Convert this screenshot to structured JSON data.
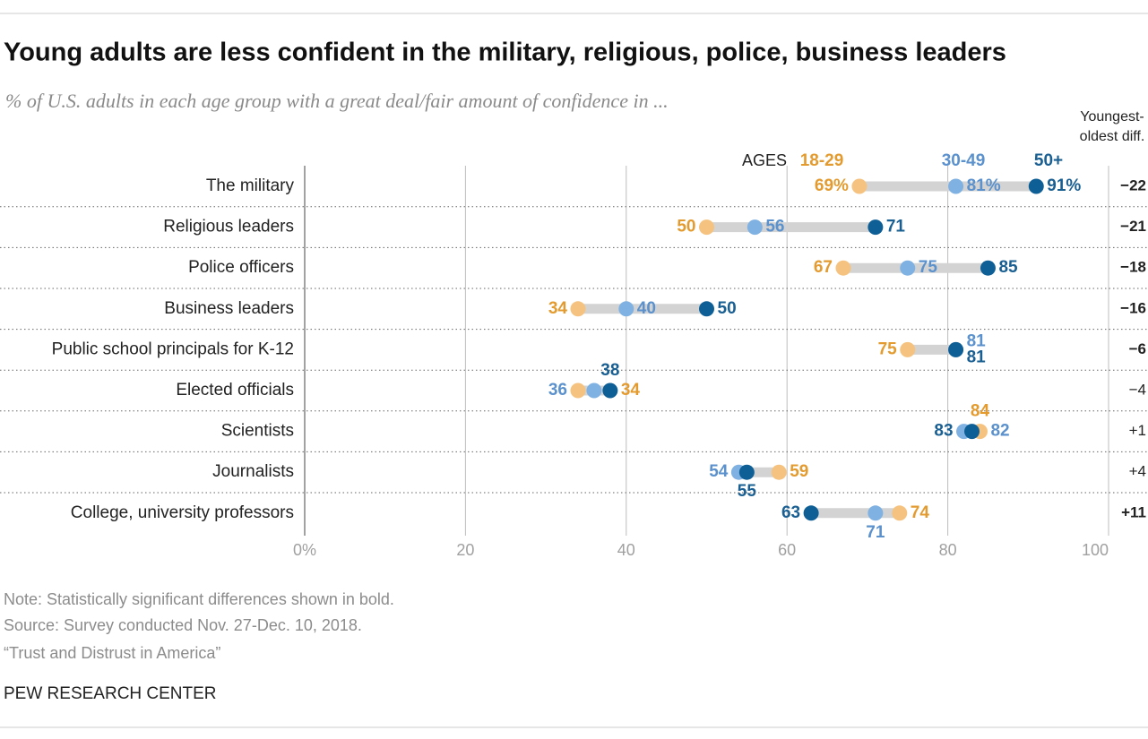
{
  "chart_data": {
    "type": "dot",
    "title": "Young adults are less confident in the military, religious, police, business leaders",
    "subtitle": "% of U.S. adults in each age group with a great deal/fair amount of confidence in ...",
    "legend_label": "AGES",
    "diff_header": "Youngest-oldest diff.",
    "categories": [
      "The military",
      "Religious leaders",
      "Police officers",
      "Business leaders",
      "Public school principals for K-12",
      "Elected officials",
      "Scientists",
      "Journalists",
      "College, university professors"
    ],
    "series": [
      {
        "name": "18-29",
        "color": "#f5c37f",
        "label_color": "#e39b2f",
        "values": [
          69,
          50,
          67,
          34,
          75,
          34,
          84,
          59,
          74
        ],
        "value_labels": [
          "69%",
          "50",
          "67",
          "34",
          "75",
          "34",
          "84",
          "59",
          "74"
        ]
      },
      {
        "name": "30-49",
        "color": "#7fb1e2",
        "label_color": "#5b91cc",
        "values": [
          81,
          56,
          75,
          40,
          81,
          36,
          82,
          54,
          71
        ],
        "value_labels": [
          "81%",
          "56",
          "75",
          "40",
          "81",
          "36",
          "82",
          "54",
          "71"
        ]
      },
      {
        "name": "50+",
        "color": "#0f5f97",
        "label_color": "#1a5f92",
        "values": [
          91,
          71,
          85,
          50,
          81,
          38,
          83,
          55,
          63
        ],
        "value_labels": [
          "91%",
          "71",
          "85",
          "50",
          "81",
          "38",
          "83",
          "55",
          "63"
        ]
      }
    ],
    "diffs": [
      {
        "value": -22,
        "label": "−22"
      },
      {
        "value": -21,
        "label": "−21"
      },
      {
        "value": -18,
        "label": "−18"
      },
      {
        "value": -16,
        "label": "−16"
      },
      {
        "value": -6,
        "label": "−6"
      },
      {
        "value": -4,
        "label": "−4"
      },
      {
        "value": 1,
        "label": "+1"
      },
      {
        "value": 4,
        "label": "+4"
      },
      {
        "value": 11,
        "label": "+11"
      }
    ],
    "significant": [
      true,
      true,
      true,
      true,
      true,
      false,
      false,
      false,
      true
    ],
    "xlim": [
      0,
      100
    ],
    "xticks": [
      {
        "value": 0,
        "label": "0%"
      },
      20,
      40,
      60,
      80,
      100
    ],
    "grid": true,
    "note": "Note: Statistically significant differences shown in bold.",
    "source": "Source: Survey conducted Nov. 27-Dec. 10, 2018.",
    "report": "“Trust and Distrust in America”",
    "brand": "PEW RESEARCH CENTER"
  }
}
